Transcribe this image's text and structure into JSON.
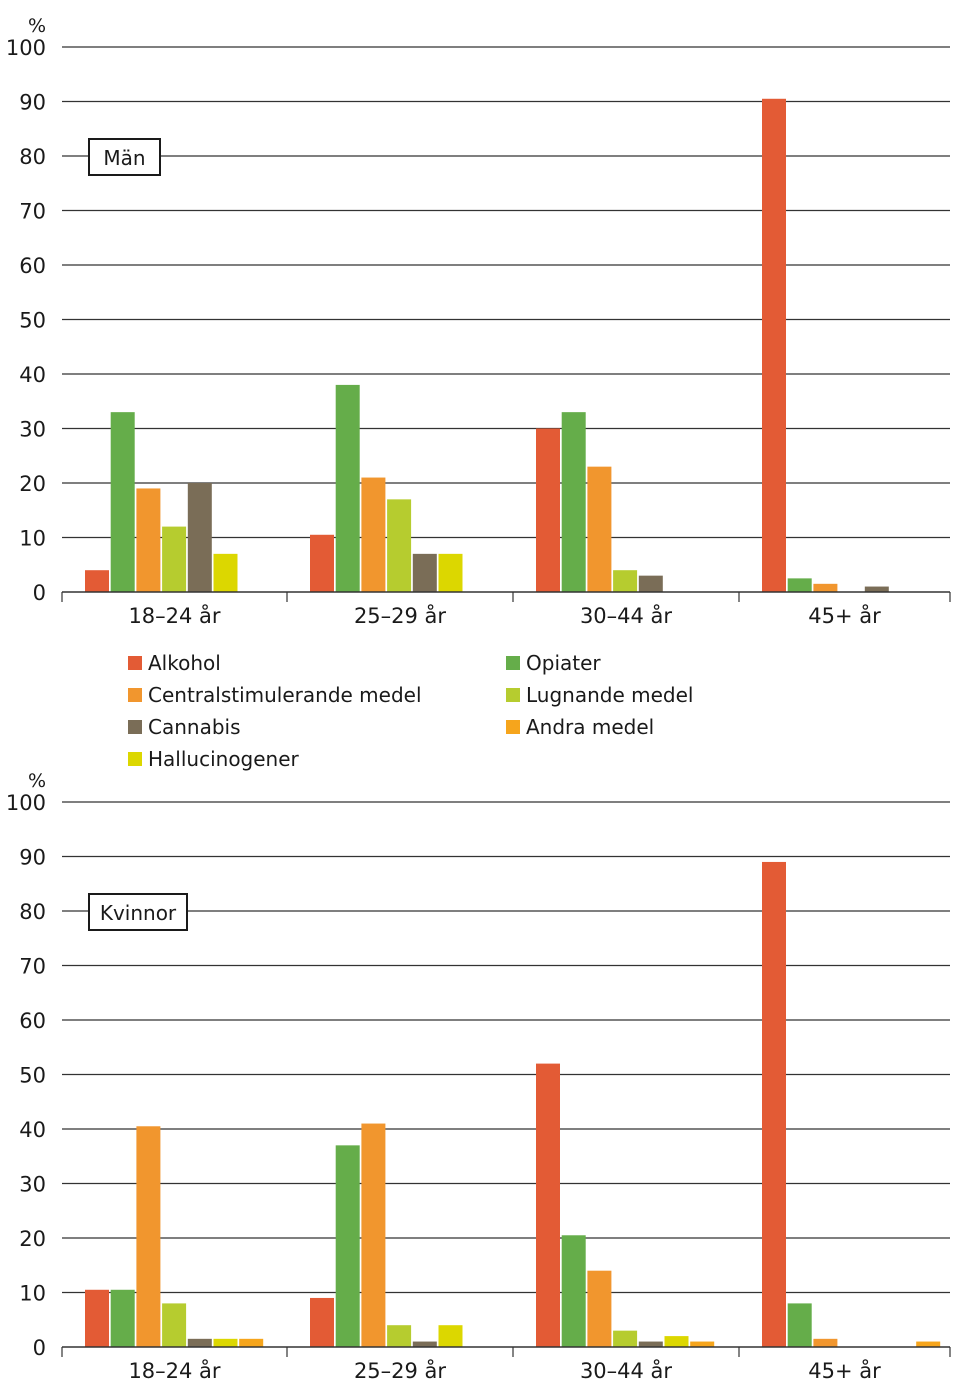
{
  "chart_data": [
    {
      "type": "bar",
      "panel_label": "Män",
      "ylabel": "%",
      "ylim": [
        0,
        100
      ],
      "yticks": [
        "0",
        "10",
        "20",
        "30",
        "40",
        "50",
        "60",
        "70",
        "80",
        "90",
        "100"
      ],
      "grid": true,
      "categories": [
        "18–24 år",
        "25–29 år",
        "30–44 år",
        "45+ år"
      ],
      "series": [
        {
          "name": "Alkohol",
          "color": "#e35b35",
          "values": [
            4,
            10.5,
            30,
            90.5
          ]
        },
        {
          "name": "Opiater",
          "color": "#65ad4a",
          "values": [
            33,
            38,
            33,
            2.5
          ]
        },
        {
          "name": "Centralstimulerande medel",
          "color": "#f1962e",
          "values": [
            19,
            21,
            23,
            1.5
          ]
        },
        {
          "name": "Lugnande medel",
          "color": "#b6cc2f",
          "values": [
            12,
            17,
            4,
            0
          ]
        },
        {
          "name": "Cannabis",
          "color": "#7a6d57",
          "values": [
            20,
            7,
            3,
            1
          ]
        },
        {
          "name": "Hallucinogener",
          "color": "#dcd700",
          "values": [
            7,
            7,
            0,
            0
          ]
        },
        {
          "name": "Andra medel",
          "color": "#f6a51c",
          "values": [
            0,
            0,
            0,
            0
          ]
        }
      ]
    },
    {
      "type": "bar",
      "panel_label": "Kvinnor",
      "ylabel": "%",
      "ylim": [
        0,
        100
      ],
      "yticks": [
        "0",
        "10",
        "20",
        "30",
        "40",
        "50",
        "60",
        "70",
        "80",
        "90",
        "100"
      ],
      "grid": true,
      "categories": [
        "18–24 år",
        "25–29 år",
        "30–44 år",
        "45+ år"
      ],
      "series": [
        {
          "name": "Alkohol",
          "color": "#e35b35",
          "values": [
            10.5,
            9,
            52,
            89
          ]
        },
        {
          "name": "Opiater",
          "color": "#65ad4a",
          "values": [
            10.5,
            37,
            20.5,
            8
          ]
        },
        {
          "name": "Centralstimulerande medel",
          "color": "#f1962e",
          "values": [
            40.5,
            41,
            14,
            1.5
          ]
        },
        {
          "name": "Lugnande medel",
          "color": "#b6cc2f",
          "values": [
            8,
            4,
            3,
            0
          ]
        },
        {
          "name": "Cannabis",
          "color": "#7a6d57",
          "values": [
            1.5,
            1,
            1,
            0
          ]
        },
        {
          "name": "Hallucinogener",
          "color": "#dcd700",
          "values": [
            1.5,
            4,
            2,
            0
          ]
        },
        {
          "name": "Andra medel",
          "color": "#f6a51c",
          "values": [
            1.5,
            0,
            1,
            1
          ]
        }
      ]
    }
  ],
  "legend": {
    "items": [
      {
        "label": "Alkohol",
        "color": "#e35b35"
      },
      {
        "label": "Opiater",
        "color": "#65ad4a"
      },
      {
        "label": "Centralstimulerande medel",
        "color": "#f1962e"
      },
      {
        "label": "Lugnande medel",
        "color": "#b6cc2f"
      },
      {
        "label": "Cannabis",
        "color": "#7a6d57"
      },
      {
        "label": "Andra medel",
        "color": "#f6a51c"
      },
      {
        "label": "Hallucinogener",
        "color": "#dcd700"
      }
    ]
  }
}
